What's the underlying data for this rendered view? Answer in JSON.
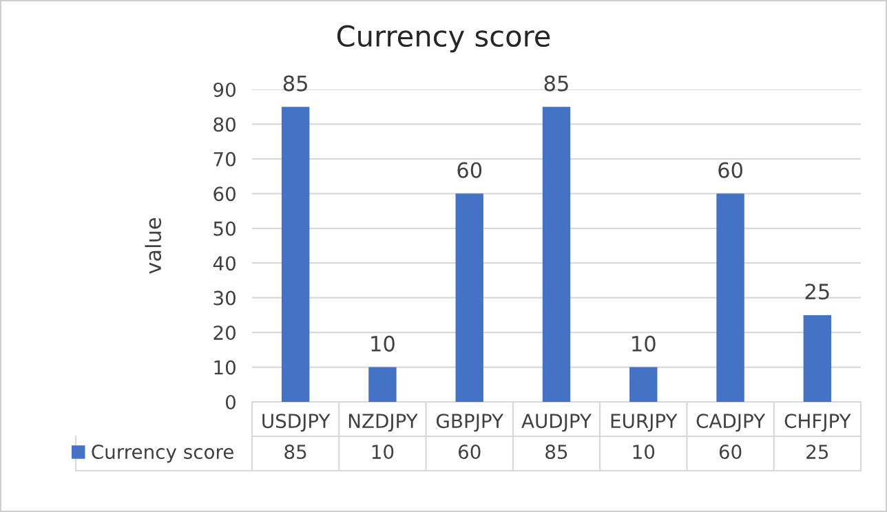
{
  "chart_data": {
    "type": "bar",
    "title": "Currency score",
    "ylabel": "value",
    "categories": [
      "USDJPY",
      "NZDJPY",
      "GBPJPY",
      "AUDJPY",
      "EURJPY",
      "CADJPY",
      "CHFJPY"
    ],
    "series": [
      {
        "name": "Currency score",
        "color": "#4472c4",
        "values": [
          85,
          10,
          60,
          85,
          10,
          60,
          25
        ]
      }
    ],
    "annotations": [
      {
        "text": "85",
        "x": "USDJPY",
        "y": 85
      },
      {
        "text": "10",
        "x": "NZDJPY",
        "y": 10
      },
      {
        "text": "60",
        "x": "GBPJPY",
        "y": 60
      },
      {
        "text": "85",
        "x": "AUDJPY",
        "y": 85
      },
      {
        "text": "10",
        "x": "EURJPY",
        "y": 10
      },
      {
        "text": "60",
        "x": "CADJPY",
        "y": 60
      },
      {
        "text": "25",
        "x": "CHFJPY",
        "y": 25
      }
    ],
    "ylim": [
      0,
      90
    ],
    "yticks": [
      0,
      10,
      20,
      30,
      40,
      50,
      60,
      70,
      80,
      90
    ],
    "grid": "y",
    "data_labels": true,
    "legend": "bottom"
  }
}
